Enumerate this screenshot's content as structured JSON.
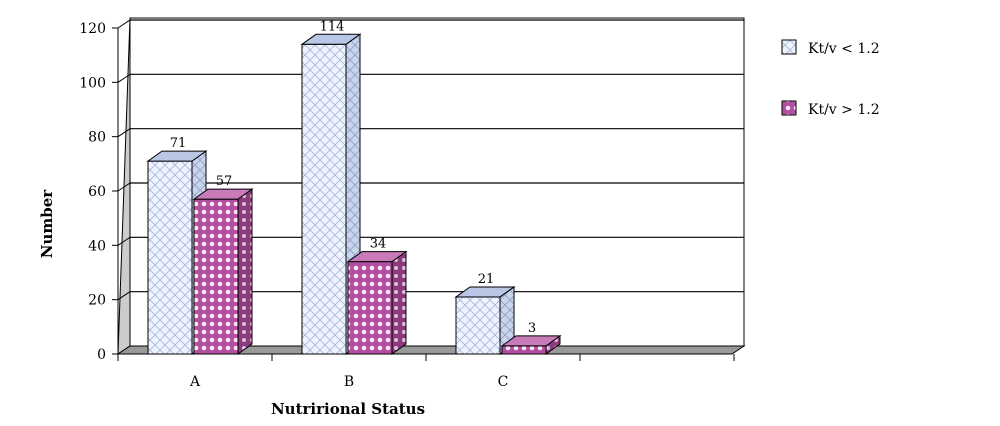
{
  "chart_data": {
    "type": "bar",
    "style": "3d-clustered-column",
    "categories": [
      "A",
      "B",
      "C"
    ],
    "series": [
      {
        "name": "Kt/v < 1.2",
        "values": [
          71,
          114,
          21
        ],
        "color": "#eef3ff",
        "pattern": "crosshatch-blue"
      },
      {
        "name": "Kt/v > 1.2",
        "values": [
          57,
          34,
          3
        ],
        "color": "#b34fa0",
        "pattern": "dots-magenta"
      }
    ],
    "yticks": [
      "0",
      "20",
      "40",
      "60",
      "80",
      "100",
      "120"
    ],
    "ylim": [
      0,
      120
    ],
    "xlabel": "Nutrirional Status",
    "ylabel": "Number",
    "data_labels": true,
    "grid": true,
    "legend_position": "right"
  }
}
